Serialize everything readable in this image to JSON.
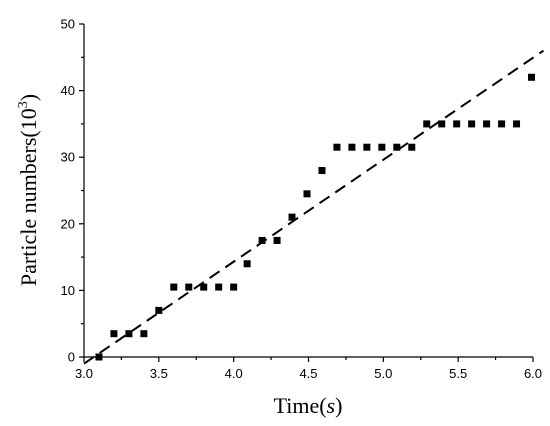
{
  "chart_data": {
    "type": "scatter",
    "xlabel": "Time(",
    "xlabel_italic": "s",
    "xlabel_close": ")",
    "ylabel": "Particle numbers(10",
    "ylabel_sup": "3",
    "ylabel_close": ")",
    "xlim": [
      3.0,
      6.0
    ],
    "ylim": [
      0,
      50
    ],
    "xticks": [
      "3.0",
      "3.5",
      "4.0",
      "4.5",
      "5.0",
      "5.5",
      "6.0"
    ],
    "xtick_values": [
      3.0,
      3.5,
      4.0,
      4.5,
      5.0,
      5.5,
      6.0
    ],
    "yticks": [
      "0",
      "10",
      "20",
      "30",
      "40",
      "50"
    ],
    "ytick_values": [
      0,
      10,
      20,
      30,
      40,
      50
    ],
    "grid": false,
    "marker": "square",
    "color": "#000000",
    "points": [
      {
        "x": 3.1,
        "y": 0
      },
      {
        "x": 3.2,
        "y": 3.5
      },
      {
        "x": 3.3,
        "y": 3.5
      },
      {
        "x": 3.4,
        "y": 3.5
      },
      {
        "x": 3.5,
        "y": 7
      },
      {
        "x": 3.6,
        "y": 10.5
      },
      {
        "x": 3.7,
        "y": 10.5
      },
      {
        "x": 3.8,
        "y": 10.5
      },
      {
        "x": 3.9,
        "y": 10.5
      },
      {
        "x": 4.0,
        "y": 10.5
      },
      {
        "x": 4.09,
        "y": 14
      },
      {
        "x": 4.19,
        "y": 17.5
      },
      {
        "x": 4.29,
        "y": 17.5
      },
      {
        "x": 4.39,
        "y": 21
      },
      {
        "x": 4.49,
        "y": 24.5
      },
      {
        "x": 4.59,
        "y": 28
      },
      {
        "x": 4.69,
        "y": 31.5
      },
      {
        "x": 4.79,
        "y": 31.5
      },
      {
        "x": 4.89,
        "y": 31.5
      },
      {
        "x": 4.99,
        "y": 31.5
      },
      {
        "x": 5.09,
        "y": 31.5
      },
      {
        "x": 5.19,
        "y": 31.5
      },
      {
        "x": 5.29,
        "y": 35
      },
      {
        "x": 5.39,
        "y": 35
      },
      {
        "x": 5.49,
        "y": 35
      },
      {
        "x": 5.59,
        "y": 35
      },
      {
        "x": 5.69,
        "y": 35
      },
      {
        "x": 5.79,
        "y": 35
      },
      {
        "x": 5.89,
        "y": 35
      },
      {
        "x": 5.99,
        "y": 42
      }
    ],
    "fit_line": {
      "style": "dashed",
      "start": {
        "x": 3.0,
        "y": -1
      },
      "end": {
        "x": 6.07,
        "y": 46
      }
    }
  }
}
